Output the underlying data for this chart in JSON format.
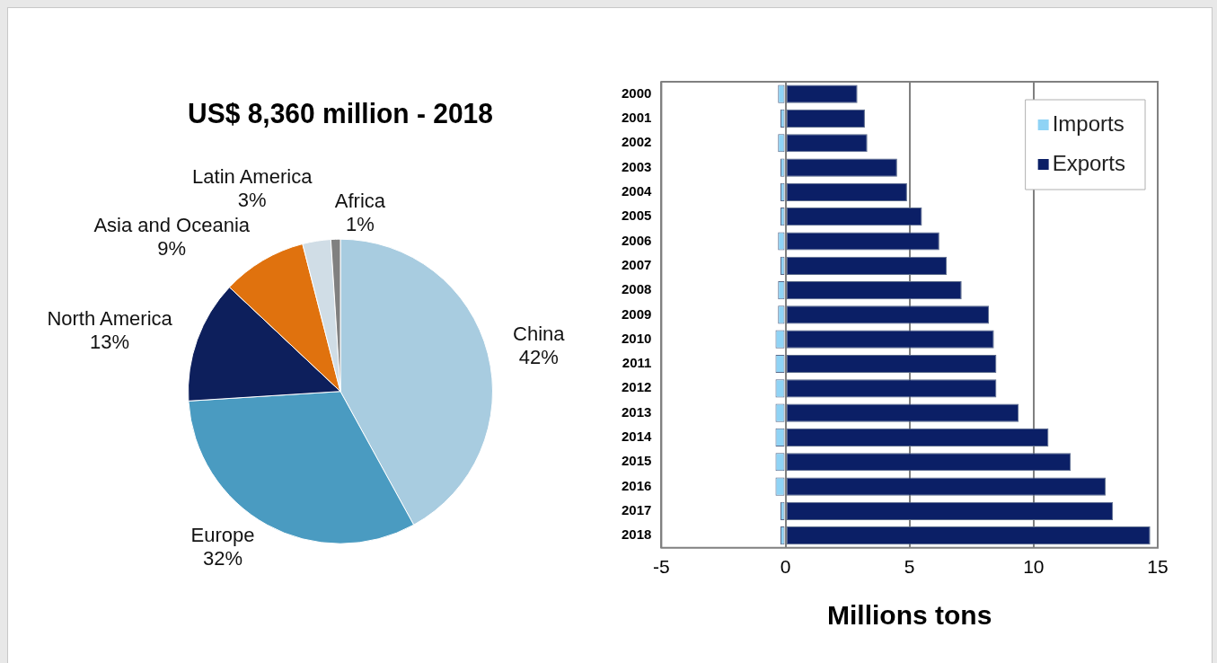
{
  "chart_data": [
    {
      "type": "pie",
      "title": "US$ 8,360 million - 2018",
      "legend": false,
      "categories": [
        "China",
        "Europe",
        "North America",
        "Asia and Oceania",
        "Latin America",
        "Africa"
      ],
      "values": [
        42,
        32,
        13,
        9,
        3,
        1
      ],
      "value_labels": [
        "42%",
        "32%",
        "13%",
        "9%",
        "3%",
        "1%"
      ],
      "colors": [
        "#a8cce0",
        "#4a9bc1",
        "#0d1f5c",
        "#e0720e",
        "#d0dde6",
        "#808080"
      ]
    },
    {
      "type": "bar",
      "orientation": "horizontal",
      "stacked": true,
      "xlabel": "Millions tons",
      "grid": "x",
      "legend": "top right",
      "categories": [
        "2000",
        "2001",
        "2002",
        "2003",
        "2004",
        "2005",
        "2006",
        "2007",
        "2008",
        "2009",
        "2010",
        "2011",
        "2012",
        "2013",
        "2014",
        "2015",
        "2016",
        "2017",
        "2018"
      ],
      "xlim": [
        -5,
        15
      ],
      "xticks": [
        -5,
        0,
        5,
        10,
        15
      ],
      "series": [
        {
          "name": "Imports",
          "color": "#8fd3f5",
          "values": [
            -0.3,
            -0.2,
            -0.3,
            -0.2,
            -0.2,
            -0.2,
            -0.3,
            -0.2,
            -0.3,
            -0.3,
            -0.4,
            -0.4,
            -0.4,
            -0.4,
            -0.4,
            -0.4,
            -0.4,
            -0.2,
            -0.2
          ]
        },
        {
          "name": "Exports",
          "color": "#0b1f66",
          "values": [
            2.9,
            3.2,
            3.3,
            4.5,
            4.9,
            5.5,
            6.2,
            6.5,
            7.1,
            8.2,
            8.4,
            8.5,
            8.5,
            9.4,
            10.6,
            11.5,
            12.9,
            13.2,
            14.7
          ]
        }
      ]
    }
  ]
}
